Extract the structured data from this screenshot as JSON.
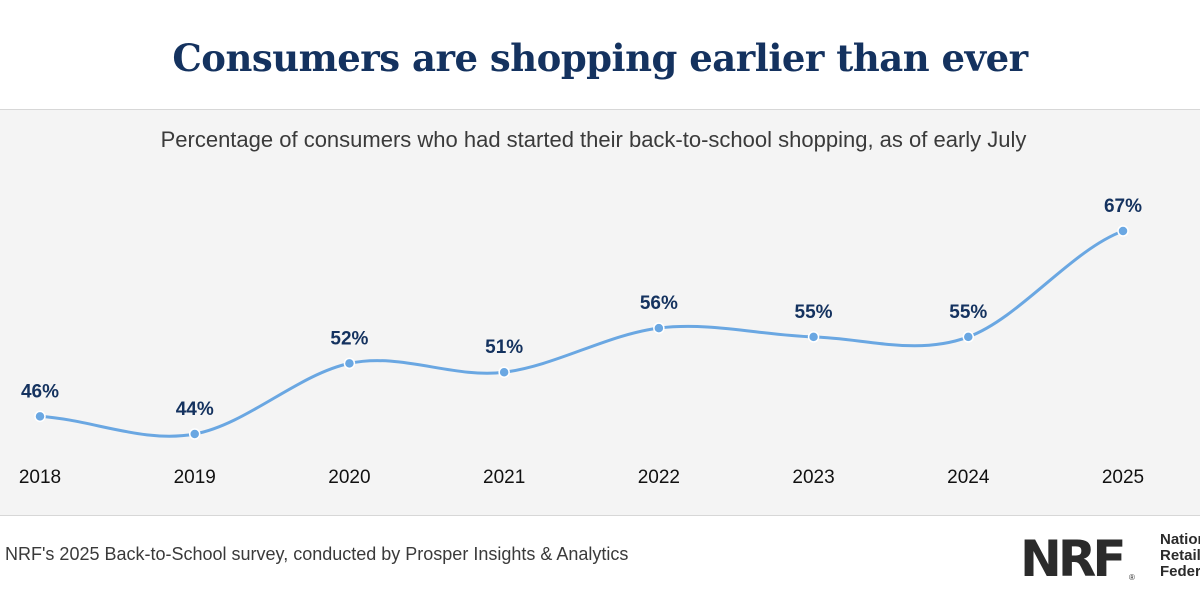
{
  "header": {
    "title": "Consumers are shopping earlier than ever"
  },
  "chart_data": {
    "type": "line",
    "title": "Consumers are shopping earlier than ever",
    "subtitle": "Percentage of consumers who had started their back-to-school shopping, as of early July",
    "categories": [
      "2018",
      "2019",
      "2020",
      "2021",
      "2022",
      "2023",
      "2024",
      "2025"
    ],
    "values": [
      46,
      44,
      52,
      51,
      56,
      55,
      55,
      67
    ],
    "value_labels": [
      "46%",
      "44%",
      "52%",
      "51%",
      "56%",
      "55%",
      "55%",
      "67%"
    ],
    "xlabel": "",
    "ylabel": "",
    "grid": false,
    "line_color": "#6aa7e2",
    "label_color": "#14325f"
  },
  "footer": {
    "source": "NRF's 2025 Back-to-School survey, conducted by Prosper Insights & Analytics",
    "logo_mark": "NRF",
    "logo_reg": "®",
    "logo_lines": [
      "National",
      "Retail",
      "Federation"
    ]
  }
}
